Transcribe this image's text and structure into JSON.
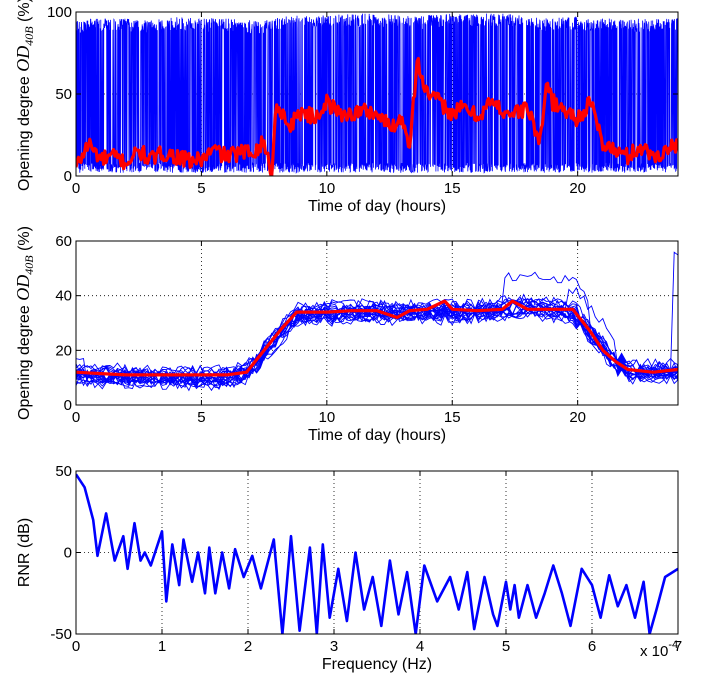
{
  "chart_data": [
    {
      "type": "line",
      "ylabel_prefix": "Opening degree ",
      "ylabel_var": "OD",
      "ylabel_sub": "40B",
      "ylabel_suffix": " (%)",
      "xlabel": "Time of day (hours)",
      "xlim": [
        0,
        24
      ],
      "ylim": [
        0,
        100
      ],
      "xticks": [
        0,
        5,
        10,
        15,
        20
      ],
      "yticks": [
        0,
        50,
        100
      ],
      "grid": true,
      "series": [
        {
          "color": "#0000ff",
          "role": "raw signal (dense, rapidly switching between ~0 and ~100)",
          "x": [
            0,
            1,
            2,
            3,
            4,
            5,
            6,
            7,
            7.7,
            8,
            9,
            10,
            11,
            12,
            13,
            13.6,
            14,
            15,
            16,
            17,
            18,
            18.7,
            19,
            20,
            21,
            22,
            23,
            24
          ],
          "y_high": [
            95,
            96,
            96,
            95,
            97,
            96,
            96,
            95,
            95,
            97,
            98,
            98,
            99,
            99,
            98,
            97,
            98,
            99,
            99,
            99,
            98,
            96,
            97,
            97,
            96,
            96,
            96,
            96
          ]
        },
        {
          "color": "#ff0000",
          "role": "smoothed",
          "x": [
            0,
            0.5,
            1,
            1.5,
            2,
            2.5,
            3,
            3.5,
            4,
            4.5,
            5,
            5.5,
            6,
            6.5,
            7,
            7.5,
            7.8,
            8,
            8.5,
            9,
            9.5,
            10,
            10.5,
            11,
            11.5,
            12,
            12.5,
            13,
            13.3,
            13.6,
            14,
            14.5,
            15,
            15.5,
            16,
            16.5,
            17,
            17.5,
            18,
            18.5,
            18.8,
            19,
            19.5,
            20,
            20.5,
            21,
            21.5,
            22,
            22.5,
            23,
            23.5,
            24
          ],
          "y": [
            5,
            20,
            10,
            12,
            8,
            15,
            10,
            14,
            12,
            9,
            10,
            16,
            12,
            14,
            15,
            20,
            2,
            45,
            30,
            40,
            35,
            45,
            38,
            38,
            40,
            38,
            30,
            35,
            20,
            70,
            50,
            45,
            38,
            42,
            36,
            45,
            40,
            38,
            42,
            20,
            60,
            45,
            40,
            35,
            45,
            20,
            15,
            12,
            18,
            12,
            15,
            20
          ]
        }
      ]
    },
    {
      "type": "line",
      "ylabel_prefix": "Opening degree ",
      "ylabel_var": "OD",
      "ylabel_sub": "40B",
      "ylabel_suffix": " (%)",
      "xlabel": "Time of day (hours)",
      "xlim": [
        0,
        24
      ],
      "ylim": [
        0,
        60
      ],
      "xticks": [
        0,
        5,
        10,
        15,
        20
      ],
      "yticks": [
        0,
        20,
        40,
        60
      ],
      "grid": true,
      "series": [
        {
          "color": "#0000ff",
          "role": "individual days (~20 overlapping traces)",
          "x": [
            0,
            2,
            4,
            6,
            6.8,
            8.8,
            11,
            13,
            15,
            17,
            18,
            19.8,
            21.5,
            22,
            24
          ],
          "y": [
            11,
            10.5,
            10,
            10,
            12,
            33,
            34,
            34,
            34,
            35,
            36,
            34,
            16,
            12,
            12
          ],
          "spread": 4
        },
        {
          "color": "#ff0000",
          "role": "mean",
          "x": [
            0,
            1,
            2,
            3,
            4,
            5,
            6,
            6.8,
            7.5,
            8.2,
            8.8,
            10,
            11,
            12,
            12.8,
            13.3,
            14,
            14.7,
            15,
            16,
            17,
            17.4,
            18,
            19,
            19.8,
            20.5,
            21,
            21.5,
            22,
            23,
            24
          ],
          "y": [
            12,
            11.5,
            11,
            11,
            11,
            11,
            11,
            12,
            20,
            28,
            34,
            34,
            34.5,
            34.5,
            32,
            34.5,
            35,
            38,
            35,
            34.5,
            35,
            38,
            35,
            35,
            35,
            27,
            20,
            16,
            13,
            12,
            13
          ]
        }
      ]
    },
    {
      "type": "line",
      "ylabel": "RNR (dB)",
      "xlabel": "Frequency (Hz)",
      "xlim": [
        0,
        7
      ],
      "ylim": [
        -50,
        50
      ],
      "xticks": [
        0,
        1,
        2,
        3,
        4,
        5,
        6,
        7
      ],
      "yticks": [
        -50,
        0,
        50
      ],
      "x_multiplier_base": "x 10",
      "x_multiplier_exp": "-4",
      "grid": true,
      "series": [
        {
          "color": "#0000ff",
          "x": [
            0,
            0.1,
            0.2,
            0.25,
            0.35,
            0.45,
            0.55,
            0.6,
            0.68,
            0.75,
            0.8,
            0.87,
            1.0,
            1.05,
            1.12,
            1.2,
            1.25,
            1.35,
            1.42,
            1.5,
            1.55,
            1.62,
            1.7,
            1.78,
            1.85,
            1.95,
            2.05,
            2.15,
            2.3,
            2.4,
            2.5,
            2.6,
            2.72,
            2.8,
            2.87,
            2.95,
            3.05,
            3.15,
            3.25,
            3.35,
            3.45,
            3.55,
            3.65,
            3.75,
            3.85,
            3.95,
            4.05,
            4.2,
            4.35,
            4.45,
            4.55,
            4.63,
            4.75,
            4.85,
            4.9,
            5.0,
            5.05,
            5.1,
            5.15,
            5.25,
            5.35,
            5.45,
            5.55,
            5.65,
            5.75,
            5.88,
            6.0,
            6.1,
            6.2,
            6.3,
            6.4,
            6.5,
            6.6,
            6.67,
            6.75,
            6.85,
            7.0
          ],
          "y": [
            48,
            40,
            20,
            -2,
            24,
            -5,
            10,
            -10,
            18,
            -5,
            0,
            -8,
            13,
            -30,
            5,
            -20,
            8,
            -18,
            0,
            -25,
            3,
            -25,
            0,
            -22,
            2,
            -15,
            -2,
            -22,
            8,
            -50,
            10,
            -48,
            3,
            -50,
            5,
            -40,
            -10,
            -42,
            0,
            -35,
            -15,
            -45,
            -5,
            -38,
            -12,
            -50,
            -8,
            -30,
            -15,
            -35,
            -12,
            -47,
            -15,
            -38,
            -45,
            -18,
            -35,
            -20,
            -40,
            -20,
            -40,
            -25,
            -8,
            -25,
            -45,
            -10,
            -20,
            -40,
            -14,
            -33,
            -20,
            -40,
            -18,
            -50,
            -35,
            -15,
            -10
          ]
        }
      ]
    }
  ]
}
